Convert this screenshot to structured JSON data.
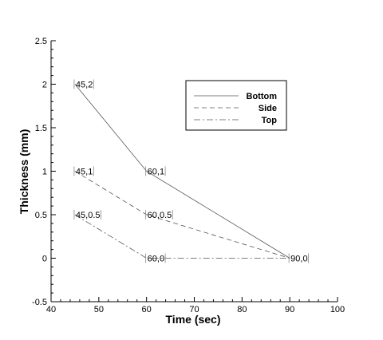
{
  "chart_data": {
    "type": "line",
    "xlabel": "Time (sec)",
    "ylabel": "Thickness (mm)",
    "xlim": [
      40,
      100
    ],
    "ylim": [
      -0.5,
      2.5
    ],
    "x_ticks": [
      40,
      50,
      60,
      70,
      80,
      90,
      100
    ],
    "y_ticks": [
      -0.5,
      0,
      0.5,
      1,
      1.5,
      2,
      2.5
    ],
    "x_tick_labels": [
      "40",
      "50",
      "60",
      "70",
      "80",
      "90",
      "100"
    ],
    "y_tick_labels": [
      "-0.5",
      "0",
      "0.5",
      "1",
      "1.5",
      "2",
      "2.5"
    ],
    "grid": false,
    "legend_position": "upper-right",
    "series": [
      {
        "name": "Bottom",
        "style": "solid",
        "color": "#555555",
        "x": [
          45,
          60,
          90
        ],
        "y": [
          2,
          1,
          0
        ]
      },
      {
        "name": "Side",
        "style": "dashed",
        "color": "#555555",
        "x": [
          45,
          60,
          90
        ],
        "y": [
          1,
          0.5,
          0
        ]
      },
      {
        "name": "Top",
        "style": "dashdot",
        "color": "#555555",
        "x": [
          45,
          60,
          90
        ],
        "y": [
          0.5,
          0,
          0
        ]
      }
    ],
    "annotations": [
      {
        "text": "45,2",
        "x": 45,
        "y": 2
      },
      {
        "text": "45,1",
        "x": 45,
        "y": 1
      },
      {
        "text": "45,0.5",
        "x": 45,
        "y": 0.5
      },
      {
        "text": "60,1",
        "x": 60,
        "y": 1
      },
      {
        "text": "60,0.5",
        "x": 60,
        "y": 0.5
      },
      {
        "text": "60,0",
        "x": 60,
        "y": 0
      },
      {
        "text": "90,0",
        "x": 90,
        "y": 0
      }
    ]
  }
}
